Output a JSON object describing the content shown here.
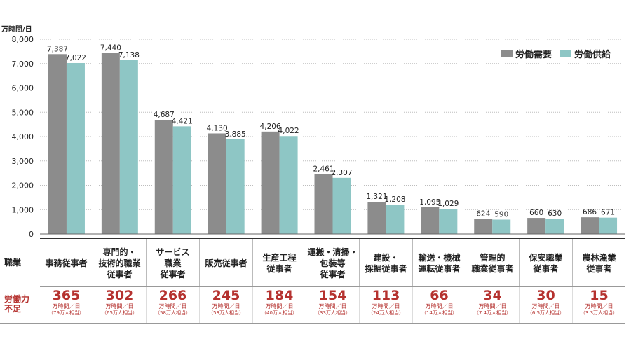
{
  "chart_data": {
    "type": "bar",
    "unit_label": "万時間/日",
    "ylim": [
      0,
      8000
    ],
    "yticks": [
      "8,000",
      "7,000",
      "6,000",
      "5,000",
      "4,000",
      "3,000",
      "2,000",
      "1,000",
      "0"
    ],
    "ytick_values": [
      8000,
      7000,
      6000,
      5000,
      4000,
      3000,
      2000,
      1000,
      0
    ],
    "legend_position": "top-right",
    "categories": [
      "事務従事者",
      "専門的・\n技術的職業\n従事者",
      "サービス\n職業\n従事者",
      "販売従事者",
      "生産工程\n従事者",
      "運搬・清掃・\n包装等\n従事者",
      "建設・\n採掘従事者",
      "輸送・機械\n運転従事者",
      "管理的\n職業従事者",
      "保安職業\n従事者",
      "農林漁業\n従事者"
    ],
    "series": [
      {
        "name": "労働需要",
        "color": "#8c8c8c",
        "values": [
          7387,
          7440,
          4687,
          4130,
          4206,
          2461,
          1321,
          1095,
          624,
          660,
          686
        ],
        "labels": [
          "7,387",
          "7,440",
          "4,687",
          "4,130",
          "4,206",
          "2,461",
          "1,321",
          "1,095",
          "624",
          "660",
          "686"
        ]
      },
      {
        "name": "労働供給",
        "color": "#8ec6c5",
        "values": [
          7022,
          7138,
          4421,
          3885,
          4022,
          2307,
          1208,
          1029,
          590,
          630,
          671
        ],
        "labels": [
          "7,022",
          "7,138",
          "4,421",
          "3,885",
          "4,022",
          "2,307",
          "1,208",
          "1,029",
          "590",
          "630",
          "671"
        ]
      }
    ]
  },
  "table": {
    "row1_label": "職業",
    "row2_label": "労働力\n不足",
    "shortage": [
      {
        "value": "365",
        "unit": "万時間／日",
        "note": "（79万人相当）"
      },
      {
        "value": "302",
        "unit": "万時間／日",
        "note": "（65万人相当）"
      },
      {
        "value": "266",
        "unit": "万時間／日",
        "note": "（58万人相当）"
      },
      {
        "value": "245",
        "unit": "万時間／日",
        "note": "（53万人相当）"
      },
      {
        "value": "184",
        "unit": "万時間／日",
        "note": "（40万人相当）"
      },
      {
        "value": "154",
        "unit": "万時間／日",
        "note": "（33万人相当）"
      },
      {
        "value": "113",
        "unit": "万時間／日",
        "note": "（24万人相当）"
      },
      {
        "value": "66",
        "unit": "万時間／日",
        "note": "（14万人相当）"
      },
      {
        "value": "34",
        "unit": "万時間／日",
        "note": "（7.4万人相当）"
      },
      {
        "value": "30",
        "unit": "万時間／日",
        "note": "（6.5万人相当）"
      },
      {
        "value": "15",
        "unit": "万時間／日",
        "note": "（3.3万人相当）"
      }
    ]
  }
}
